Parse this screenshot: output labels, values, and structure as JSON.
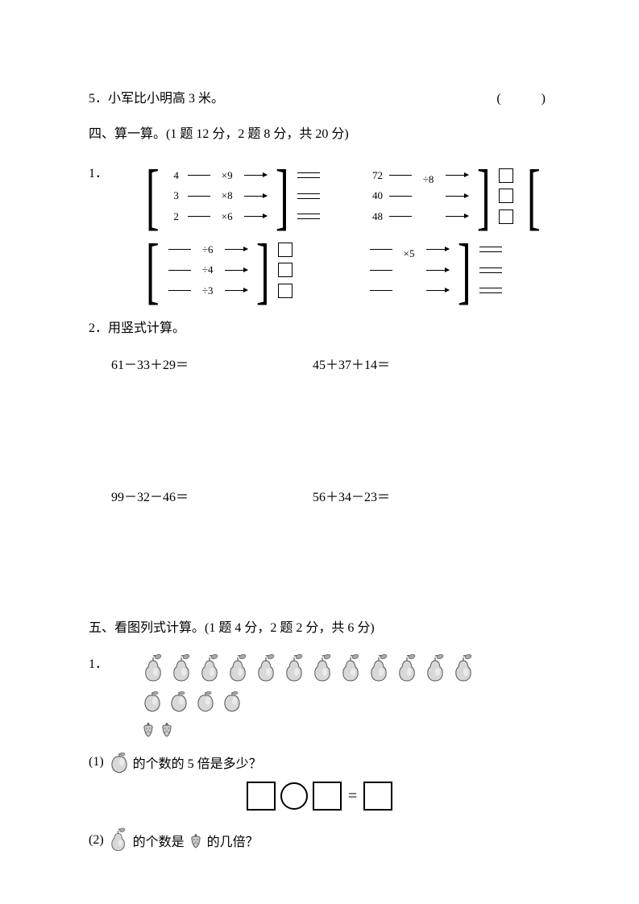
{
  "q5": {
    "text": "5．小军比小明高 3 米。",
    "paren": "(　　)"
  },
  "section4": {
    "title": "四、算一算。(1 题 12 分，2 题 8 分，共 20 分)",
    "q1_label": "1．",
    "diagram1": {
      "nums": [
        "4",
        "3",
        "2"
      ],
      "ops1": [
        "×9",
        "×8",
        "×6"
      ],
      "ops2": [
        "÷6",
        "÷4",
        "÷3"
      ]
    },
    "diagram2": {
      "nums": [
        "72",
        "40",
        "48"
      ],
      "ops1": [
        "÷8",
        "",
        ""
      ],
      "ops2": [
        "×5",
        "",
        ""
      ]
    },
    "q2_label": "2．用竖式计算。",
    "expr1": "61－33＋29＝",
    "expr2": "45＋37＋14＝",
    "expr3": "99－32－46＝",
    "expr4": "56＋34－23＝"
  },
  "section5": {
    "title": "五、看图列式计算。(1 题 4 分，2 题 2 分，共 6 分)",
    "q1_label": "1．",
    "pear_count": 12,
    "apple_count": 4,
    "strawberry_count": 2,
    "sub1_label": "(1)",
    "sub1_text1": "的个数的 5 倍是多少？",
    "eq_sign": "=",
    "sub2_label": "(2)",
    "sub2_text1": "的个数是",
    "sub2_text2": "的几倍？"
  },
  "colors": {
    "black": "#000000",
    "fruit_gray": "#cccccc",
    "fruit_dark": "#999999",
    "leafy": "#888888"
  }
}
